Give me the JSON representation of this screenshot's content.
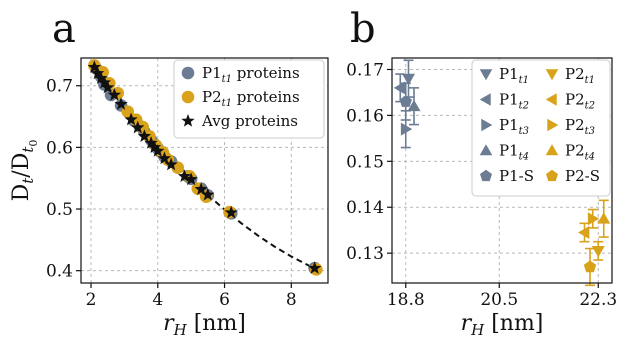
{
  "chart_data": [
    {
      "panel": "a",
      "type": "scatter",
      "xlabel": "r_H [nm]",
      "ylabel": "D_t/D_t0",
      "xlim": [
        1.7,
        9.1
      ],
      "ylim": [
        0.38,
        0.745
      ],
      "x_ticks": [
        2,
        4,
        6,
        8
      ],
      "y_ticks": [
        0.4,
        0.5,
        0.6,
        0.7
      ],
      "x_tick_labels": [
        "2",
        "4",
        "6",
        "8"
      ],
      "y_tick_labels": [
        "0.4",
        "0.5",
        "0.6",
        "0.7"
      ],
      "grid": true,
      "legend_position": "top-right",
      "colors": {
        "P1": "#6b7c93",
        "P2": "#d9a21b",
        "avg": "#111111"
      },
      "series": [
        {
          "name": "P1_t1 proteins",
          "name_main": "P1",
          "name_sub": "t1",
          "name_rest": " proteins",
          "marker": "circle",
          "x": [
            2.15,
            2.3,
            2.4,
            2.6,
            2.9,
            3.3,
            3.45,
            3.6,
            3.8,
            3.9,
            4.0,
            4.1,
            4.2,
            4.4,
            4.9,
            5.0,
            5.3,
            5.5,
            6.2,
            8.7
          ],
          "y": [
            0.728,
            0.715,
            0.702,
            0.685,
            0.668,
            0.643,
            0.635,
            0.625,
            0.612,
            0.605,
            0.598,
            0.592,
            0.585,
            0.577,
            0.553,
            0.549,
            0.533,
            0.522,
            0.493,
            0.404
          ]
        },
        {
          "name": "P2_t1 proteins",
          "name_main": "P2",
          "name_sub": "t1",
          "name_rest": " proteins",
          "marker": "circle",
          "x": [
            2.1,
            2.35,
            2.55,
            2.8,
            3.1,
            3.35,
            3.55,
            3.75,
            3.95,
            4.15,
            4.3,
            4.6,
            4.95,
            5.2,
            5.45,
            6.15,
            8.75
          ],
          "y": [
            0.733,
            0.722,
            0.704,
            0.688,
            0.658,
            0.645,
            0.633,
            0.618,
            0.603,
            0.592,
            0.58,
            0.567,
            0.553,
            0.533,
            0.52,
            0.495,
            0.402
          ]
        },
        {
          "name": "Avg proteins",
          "name_main": "Avg proteins",
          "name_sub": "",
          "name_rest": "",
          "marker": "star",
          "x": [
            2.1,
            2.2,
            2.3,
            2.4,
            2.5,
            2.7,
            2.9,
            3.2,
            3.4,
            3.6,
            3.8,
            3.9,
            4.0,
            4.2,
            4.4,
            4.8,
            5.0,
            5.3,
            5.5,
            6.2,
            8.7
          ],
          "y": [
            0.73,
            0.72,
            0.712,
            0.705,
            0.697,
            0.685,
            0.67,
            0.645,
            0.632,
            0.618,
            0.607,
            0.6,
            0.594,
            0.582,
            0.572,
            0.553,
            0.548,
            0.532,
            0.523,
            0.494,
            0.404
          ]
        }
      ],
      "fit_curve": {
        "style": "dashed",
        "x": [
          2.1,
          2.5,
          3.0,
          3.5,
          4.0,
          4.5,
          5.0,
          5.5,
          6.0,
          6.5,
          7.0,
          7.5,
          8.0,
          8.5,
          8.8
        ],
        "y": [
          0.728,
          0.701,
          0.669,
          0.637,
          0.606,
          0.576,
          0.549,
          0.523,
          0.499,
          0.477,
          0.457,
          0.439,
          0.423,
          0.409,
          0.401
        ]
      }
    },
    {
      "panel": "b",
      "type": "scatter",
      "xlabel": "r_H [nm]",
      "ylabel": "",
      "xlim": [
        18.55,
        22.55
      ],
      "ylim": [
        0.1235,
        0.1725
      ],
      "x_ticks": [
        18.8,
        20.5,
        22.3
      ],
      "y_ticks": [
        0.13,
        0.14,
        0.15,
        0.16,
        0.17
      ],
      "x_tick_labels": [
        "18.8",
        "20.5",
        "22.3"
      ],
      "y_tick_labels": [
        "0.13",
        "0.14",
        "0.15",
        "0.16",
        "0.17"
      ],
      "grid": true,
      "legend_position": "top-right",
      "colors": {
        "P1": "#6b7c93",
        "P2": "#d9a21b"
      },
      "series": [
        {
          "name": "P1_t1",
          "name_main": "P1",
          "name_sub": "t1",
          "marker": "triangle-down",
          "group": "P1",
          "x": [
            18.85
          ],
          "y": [
            0.168
          ],
          "yerr": [
            0.004
          ]
        },
        {
          "name": "P1_t2",
          "name_main": "P1",
          "name_sub": "t2",
          "marker": "triangle-left",
          "group": "P1",
          "x": [
            18.7
          ],
          "y": [
            0.166
          ],
          "yerr": [
            0.003
          ]
        },
        {
          "name": "P1_t3",
          "name_main": "P1",
          "name_sub": "t3",
          "marker": "triangle-right",
          "group": "P1",
          "x": [
            18.8
          ],
          "y": [
            0.157
          ],
          "yerr": [
            0.004
          ]
        },
        {
          "name": "P1_t4",
          "name_main": "P1",
          "name_sub": "t4",
          "marker": "triangle-up",
          "group": "P1",
          "x": [
            18.95
          ],
          "y": [
            0.162
          ],
          "yerr": [
            0.004
          ]
        },
        {
          "name": "P1-S",
          "name_main": "P1-S",
          "name_sub": "",
          "marker": "pentagon",
          "group": "P1",
          "x": [
            18.8
          ],
          "y": [
            0.163
          ],
          "yerr": [
            0.004
          ]
        },
        {
          "name": "P2_t1",
          "name_main": "P2",
          "name_sub": "t1",
          "marker": "triangle-down",
          "group": "P2",
          "x": [
            22.3
          ],
          "y": [
            0.1305
          ],
          "yerr": [
            0.002
          ]
        },
        {
          "name": "P2_t2",
          "name_main": "P2",
          "name_sub": "t2",
          "marker": "triangle-left",
          "group": "P2",
          "x": [
            22.05
          ],
          "y": [
            0.1345
          ],
          "yerr": [
            0.002
          ]
        },
        {
          "name": "P2_t3",
          "name_main": "P2",
          "name_sub": "t3",
          "marker": "triangle-right",
          "group": "P2",
          "x": [
            22.2
          ],
          "y": [
            0.1375
          ],
          "yerr": [
            0.002
          ]
        },
        {
          "name": "P2_t4",
          "name_main": "P2",
          "name_sub": "t4",
          "marker": "triangle-up",
          "group": "P2",
          "x": [
            22.4
          ],
          "y": [
            0.1375
          ],
          "yerr": [
            0.004
          ]
        },
        {
          "name": "P2-S",
          "name_main": "P2-S",
          "name_sub": "",
          "marker": "pentagon",
          "group": "P2",
          "x": [
            22.15
          ],
          "y": [
            0.127
          ],
          "yerr": [
            0.004
          ]
        }
      ]
    }
  ]
}
